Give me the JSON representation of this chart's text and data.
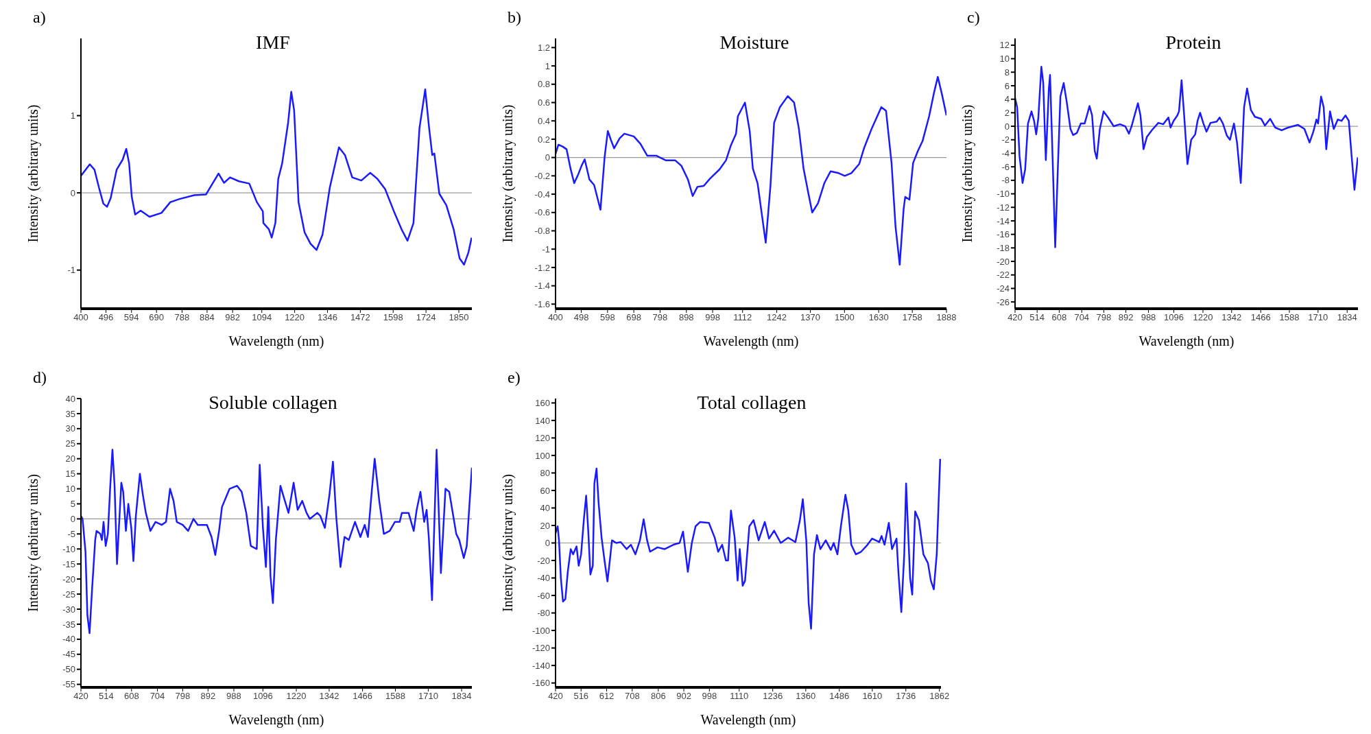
{
  "chart_data": [
    {
      "type": "line",
      "title": "IMF",
      "xlabel": "Wavelength (nm)",
      "ylabel": "Intensity (arbitrary units)",
      "annotations": [
        "a)"
      ],
      "color": "#1a1aff",
      "xlim": [
        400,
        1900
      ],
      "xticks": [
        400,
        496,
        594,
        690,
        788,
        884,
        982,
        1094,
        1220,
        1346,
        1472,
        1598,
        1724,
        1850
      ],
      "ylim": [
        -1.5,
        2
      ],
      "yticks": [
        -1,
        0,
        1
      ],
      "ref_lines": [
        {
          "axis": "y",
          "value": 0,
          "color": "#999999"
        }
      ],
      "x": [
        400,
        434,
        452,
        469,
        486,
        500,
        514,
        537,
        560,
        574,
        585,
        595,
        608,
        629,
        663,
        709,
        743,
        778,
        835,
        880,
        928,
        949,
        972,
        1006,
        1046,
        1075,
        1098,
        1100,
        1121,
        1132,
        1146,
        1157,
        1172,
        1195,
        1207,
        1218,
        1235,
        1258,
        1281,
        1304,
        1327,
        1355,
        1390,
        1413,
        1441,
        1476,
        1510,
        1538,
        1567,
        1601,
        1630,
        1653,
        1676,
        1699,
        1721,
        1736,
        1748,
        1756,
        1775,
        1802,
        1830,
        1853,
        1870,
        1887,
        1899
      ],
      "values": [
        0.22,
        0.37,
        0.3,
        0.07,
        -0.14,
        -0.18,
        -0.07,
        0.3,
        0.43,
        0.57,
        0.38,
        -0.05,
        -0.28,
        -0.23,
        -0.31,
        -0.26,
        -0.12,
        -0.08,
        -0.03,
        -0.02,
        0.25,
        0.13,
        0.2,
        0.15,
        0.12,
        -0.12,
        -0.24,
        -0.39,
        -0.47,
        -0.58,
        -0.39,
        0.18,
        0.38,
        0.91,
        1.31,
        1.07,
        -0.12,
        -0.51,
        -0.66,
        -0.74,
        -0.54,
        0.07,
        0.59,
        0.49,
        0.2,
        0.16,
        0.26,
        0.18,
        0.05,
        -0.24,
        -0.47,
        -0.62,
        -0.39,
        0.84,
        1.34,
        0.84,
        0.49,
        0.51,
        -0.01,
        -0.16,
        -0.47,
        -0.85,
        -0.93,
        -0.77,
        -0.58
      ]
    },
    {
      "type": "line",
      "title": "Moisture",
      "xlabel": "Wavelength (nm)",
      "ylabel": "Intensity (arbitrary units)",
      "annotations": [
        "b)"
      ],
      "color": "#1a1aff",
      "xlim": [
        400,
        1888
      ],
      "xticks": [
        400,
        498,
        598,
        698,
        798,
        898,
        998,
        1112,
        1242,
        1370,
        1500,
        1630,
        1758,
        1888
      ],
      "ylim": [
        -1.65,
        1.3
      ],
      "yticks": [
        -1.6,
        -1.4,
        -1.2,
        -1,
        -0.8,
        -0.6,
        -0.4,
        -0.2,
        0,
        0.2,
        0.4,
        0.6,
        0.8,
        1,
        1.2
      ],
      "ref_lines": [
        {
          "axis": "y",
          "value": 0,
          "color": "#999999"
        }
      ],
      "x": [
        400,
        411,
        427,
        442,
        457,
        471,
        487,
        499,
        511,
        529,
        547,
        571,
        587,
        599,
        611,
        623,
        644,
        662,
        698,
        723,
        749,
        783,
        819,
        855,
        879,
        904,
        922,
        940,
        964,
        988,
        1024,
        1049,
        1067,
        1087,
        1094,
        1121,
        1139,
        1151,
        1169,
        1200,
        1218,
        1232,
        1254,
        1284,
        1308,
        1326,
        1344,
        1363,
        1377,
        1399,
        1423,
        1447,
        1477,
        1501,
        1526,
        1556,
        1574,
        1604,
        1640,
        1658,
        1679,
        1694,
        1710,
        1725,
        1731,
        1747,
        1761,
        1779,
        1797,
        1822,
        1840,
        1855,
        1870,
        1888
      ],
      "values": [
        0.04,
        0.14,
        0.12,
        0.09,
        -0.12,
        -0.28,
        -0.18,
        -0.09,
        -0.02,
        -0.24,
        -0.3,
        -0.57,
        0.01,
        0.29,
        0.19,
        0.1,
        0.21,
        0.26,
        0.23,
        0.15,
        0.02,
        0.02,
        -0.03,
        -0.03,
        -0.09,
        -0.24,
        -0.42,
        -0.32,
        -0.31,
        -0.23,
        -0.13,
        -0.03,
        0.13,
        0.26,
        0.45,
        0.6,
        0.29,
        -0.12,
        -0.28,
        -0.93,
        -0.31,
        0.38,
        0.55,
        0.67,
        0.6,
        0.32,
        -0.12,
        -0.4,
        -0.6,
        -0.5,
        -0.28,
        -0.15,
        -0.17,
        -0.2,
        -0.17,
        -0.07,
        0.1,
        0.32,
        0.55,
        0.51,
        -0.06,
        -0.75,
        -1.17,
        -0.56,
        -0.43,
        -0.46,
        -0.06,
        0.07,
        0.18,
        0.45,
        0.7,
        0.88,
        0.7,
        0.46
      ]
    },
    {
      "type": "line",
      "title": "Protein",
      "xlabel": "Wavelength (nm)",
      "ylabel": "Intensity (arbitrary units)",
      "annotations": [
        "c)"
      ],
      "color": "#1a1aff",
      "xlim": [
        420,
        1880
      ],
      "xticks": [
        420,
        514,
        608,
        704,
        798,
        892,
        988,
        1096,
        1220,
        1342,
        1466,
        1588,
        1710,
        1834
      ],
      "ylim": [
        -27,
        13
      ],
      "yticks": [
        -26,
        -24,
        -22,
        -20,
        -18,
        -16,
        -14,
        -12,
        -10,
        -8,
        -6,
        -4,
        -2,
        0,
        2,
        4,
        6,
        8,
        10,
        12
      ],
      "ref_lines": [
        {
          "axis": "y",
          "value": 0,
          "color": "#999999"
        }
      ],
      "x": [
        420,
        429,
        439,
        452,
        463,
        475,
        490,
        501,
        510,
        519,
        532,
        540,
        551,
        564,
        569,
        580,
        591,
        602,
        613,
        627,
        640,
        656,
        667,
        683,
        700,
        716,
        726,
        737,
        748,
        759,
        768,
        781,
        797,
        818,
        840,
        867,
        889,
        905,
        916,
        932,
        943,
        954,
        967,
        981,
        1002,
        1030,
        1051,
        1073,
        1082,
        1095,
        1111,
        1118,
        1129,
        1140,
        1154,
        1170,
        1187,
        1197,
        1208,
        1222,
        1235,
        1252,
        1279,
        1291,
        1305,
        1322,
        1335,
        1352,
        1365,
        1381,
        1395,
        1408,
        1424,
        1441,
        1468,
        1484,
        1506,
        1528,
        1555,
        1582,
        1625,
        1652,
        1674,
        1690,
        1703,
        1710,
        1723,
        1734,
        1745,
        1761,
        1777,
        1794,
        1810,
        1827,
        1841,
        1852,
        1865,
        1879
      ],
      "values": [
        4.2,
        2.8,
        -4.4,
        -8.4,
        -6.4,
        0.4,
        2.2,
        0.8,
        -1.2,
        1.2,
        8.8,
        6.4,
        -5,
        5.6,
        7.6,
        -4.8,
        -17.9,
        -6.4,
        4.4,
        6.4,
        3.6,
        -0.4,
        -1.3,
        -1,
        0.4,
        0.4,
        1.6,
        3,
        1.6,
        -3.6,
        -4.8,
        -0.4,
        2.2,
        1.2,
        0,
        0.3,
        0,
        -1.1,
        0,
        2,
        3.4,
        1.6,
        -3.4,
        -1.6,
        -0.6,
        0.5,
        0.3,
        1.3,
        -0.2,
        0.8,
        1.6,
        2.2,
        6.8,
        1.6,
        -5.6,
        -2,
        -1.2,
        0.8,
        2,
        0.4,
        -0.8,
        0.5,
        0.7,
        1.3,
        0.4,
        -1.4,
        -2,
        0.4,
        -2.4,
        -8.4,
        2.8,
        5.6,
        2.4,
        1.4,
        1.1,
        0.1,
        1.1,
        -0.2,
        -0.6,
        -0.2,
        0.2,
        -0.4,
        -2.4,
        -0.8,
        1,
        0.4,
        4.4,
        2.8,
        -3.4,
        2.2,
        -0.4,
        1,
        0.8,
        1.6,
        0.8,
        -4,
        -9.4,
        -4.6
      ]
    },
    {
      "type": "line",
      "title": "Soluble collagen",
      "xlabel": "Wavelength (nm)",
      "ylabel": "Intensity (arbitrary units)",
      "annotations": [
        "d)"
      ],
      "color": "#1a1aff",
      "xlim": [
        420,
        1872
      ],
      "xticks": [
        420,
        514,
        608,
        704,
        798,
        892,
        988,
        1096,
        1220,
        1342,
        1466,
        1588,
        1710,
        1834
      ],
      "ylim": [
        -56,
        40
      ],
      "yticks": [
        -55,
        -50,
        -45,
        -40,
        -35,
        -30,
        -25,
        -20,
        -15,
        -10,
        -5,
        0,
        5,
        10,
        15,
        20,
        25,
        30,
        35,
        40
      ],
      "ref_lines": [
        {
          "axis": "y",
          "value": 0,
          "color": "#999999"
        }
      ],
      "x": [
        420,
        426,
        437,
        444,
        452,
        461,
        473,
        478,
        492,
        498,
        504,
        512,
        520,
        529,
        537,
        545,
        554,
        561,
        570,
        577,
        587,
        596,
        607,
        615,
        624,
        639,
        650,
        661,
        678,
        697,
        720,
        736,
        751,
        764,
        776,
        798,
        818,
        838,
        854,
        888,
        905,
        919,
        933,
        944,
        958,
        972,
        1000,
        1017,
        1034,
        1051,
        1073,
        1084,
        1096,
        1107,
        1116,
        1124,
        1133,
        1144,
        1161,
        1174,
        1191,
        1210,
        1225,
        1242,
        1258,
        1270,
        1298,
        1309,
        1326,
        1343,
        1356,
        1368,
        1384,
        1399,
        1415,
        1438,
        1458,
        1474,
        1486,
        1500,
        1511,
        1528,
        1545,
        1567,
        1586,
        1604,
        1612,
        1637,
        1656,
        1667,
        1681,
        1695,
        1704,
        1712,
        1724,
        1741,
        1757,
        1774,
        1788,
        1814,
        1825,
        1842,
        1853,
        1872
      ],
      "values": [
        1,
        0,
        -11,
        -32,
        -38,
        -24,
        -7,
        -4,
        -5,
        -7,
        -1,
        -9,
        -5,
        11,
        23,
        11,
        -15,
        -3,
        12,
        9,
        -4,
        5,
        -3,
        -14,
        1,
        15,
        8,
        2,
        -4,
        -1,
        -2,
        -1,
        10,
        6,
        -1,
        -2,
        -4,
        0,
        -2,
        -2,
        -6,
        -12,
        -4,
        4,
        7,
        10,
        11,
        9,
        2,
        -9,
        -10,
        18,
        -3,
        -16,
        4,
        -19,
        -28,
        -7,
        11,
        7,
        2,
        12,
        3,
        6,
        2,
        0,
        2,
        1,
        -3,
        8,
        19,
        1,
        -16,
        -6,
        -7,
        -1,
        -6,
        -2,
        -6,
        9,
        20,
        6,
        -5,
        -4,
        -1,
        -1,
        2,
        2,
        -4,
        3,
        9,
        -1,
        3,
        -6,
        -27,
        23,
        -18,
        10,
        9,
        -5,
        -7,
        -13,
        -9,
        17
      ]
    },
    {
      "type": "line",
      "title": "Total collagen",
      "xlabel": "Wavelength (nm)",
      "ylabel": "Intensity (arbitrary units)",
      "annotations": [
        "e)"
      ],
      "color": "#1a1aff",
      "xlim": [
        420,
        1868
      ],
      "xticks": [
        420,
        516,
        612,
        708,
        806,
        902,
        998,
        1110,
        1236,
        1360,
        1486,
        1610,
        1736,
        1862
      ],
      "ylim": [
        -165,
        165
      ],
      "yticks": [
        -160,
        -140,
        -120,
        -100,
        -80,
        -60,
        -40,
        -20,
        0,
        20,
        40,
        60,
        80,
        100,
        120,
        140,
        160
      ],
      "ref_lines": [
        {
          "axis": "y",
          "value": 0,
          "color": "#999999"
        }
      ],
      "x": [
        420,
        428,
        433,
        440,
        448,
        457,
        466,
        477,
        486,
        499,
        507,
        516,
        527,
        535,
        543,
        551,
        560,
        566,
        574,
        582,
        593,
        604,
        615,
        624,
        632,
        648,
        665,
        687,
        703,
        720,
        737,
        751,
        764,
        775,
        803,
        830,
        863,
        886,
        899,
        917,
        932,
        946,
        963,
        996,
        1018,
        1031,
        1046,
        1060,
        1068,
        1079,
        1093,
        1104,
        1112,
        1123,
        1132,
        1148,
        1164,
        1183,
        1206,
        1222,
        1241,
        1266,
        1294,
        1321,
        1338,
        1349,
        1362,
        1371,
        1380,
        1391,
        1402,
        1415,
        1435,
        1454,
        1465,
        1479,
        1492,
        1509,
        1520,
        1531,
        1548,
        1568,
        1592,
        1609,
        1636,
        1645,
        1656,
        1672,
        1684,
        1701,
        1708,
        1719,
        1730,
        1737,
        1752,
        1760,
        1771,
        1785,
        1802,
        1819,
        1830,
        1841,
        1852,
        1865
      ],
      "values": [
        11,
        19,
        3,
        -40,
        -67,
        -64,
        -33,
        -7,
        -13,
        -4,
        -26,
        -13,
        29,
        54,
        13,
        -36,
        -26,
        68,
        85,
        45,
        6,
        -20,
        -44,
        -20,
        3,
        0,
        1,
        -7,
        -2,
        -13,
        3,
        27,
        3,
        -10,
        -5,
        -7,
        -2,
        0,
        13,
        -33,
        0,
        19,
        24,
        23,
        6,
        -10,
        -2,
        -20,
        -20,
        37,
        6,
        -43,
        -7,
        -49,
        -43,
        19,
        26,
        3,
        24,
        5,
        14,
        0,
        6,
        1,
        26,
        50,
        3,
        -69,
        -98,
        -13,
        9,
        -7,
        3,
        -8,
        0,
        -13,
        19,
        55,
        37,
        -2,
        -13,
        -10,
        -2,
        5,
        1,
        8,
        -2,
        23,
        -7,
        5,
        -33,
        -79,
        -13,
        68,
        -40,
        -59,
        36,
        26,
        -13,
        -23,
        -43,
        -53,
        -13,
        96
      ]
    }
  ]
}
